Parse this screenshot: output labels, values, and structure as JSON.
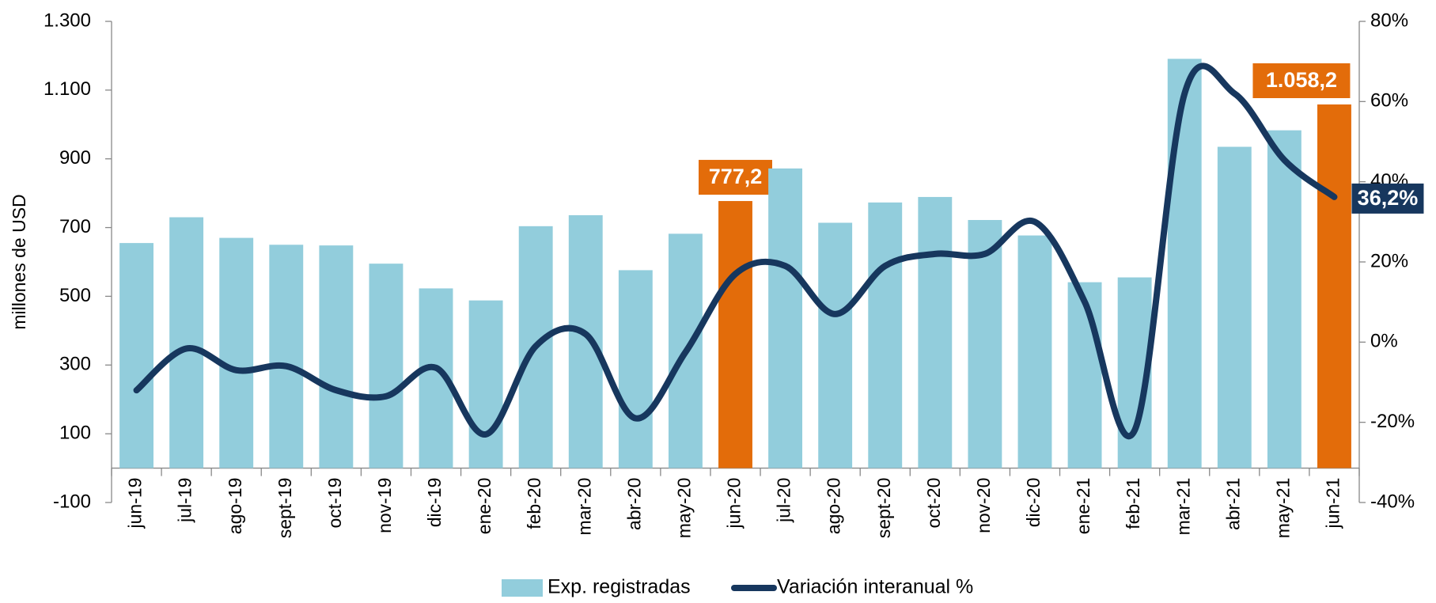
{
  "chart_data": {
    "type": "bar_line",
    "ylabel": "millones de USD",
    "categories": [
      "jun-19",
      "jul-19",
      "ago-19",
      "sept-19",
      "oct-19",
      "nov-19",
      "dic-19",
      "ene-20",
      "feb-20",
      "mar-20",
      "abr-20",
      "may-20",
      "jun-20",
      "jul-20",
      "ago-20",
      "sept-20",
      "oct-20",
      "nov-20",
      "dic-20",
      "ene-21",
      "feb-21",
      "mar-21",
      "abr-21",
      "may-21",
      "jun-21"
    ],
    "series": [
      {
        "name": "Exp. registradas",
        "type": "bar",
        "color": "#92cddc",
        "colors": [
          "#92cddc",
          "#92cddc",
          "#92cddc",
          "#92cddc",
          "#92cddc",
          "#92cddc",
          "#92cddc",
          "#92cddc",
          "#92cddc",
          "#92cddc",
          "#92cddc",
          "#92cddc",
          "#e36c0a",
          "#92cddc",
          "#92cddc",
          "#92cddc",
          "#92cddc",
          "#92cddc",
          "#92cddc",
          "#92cddc",
          "#92cddc",
          "#92cddc",
          "#92cddc",
          "#92cddc",
          "#e36c0a"
        ],
        "values": [
          655,
          730,
          670,
          650,
          648,
          595,
          523,
          488,
          704,
          736,
          576,
          682,
          777.2,
          872,
          714,
          773,
          789,
          722,
          677,
          541,
          555,
          1191,
          935,
          983,
          1058.2
        ],
        "value_labels": [
          null,
          null,
          null,
          null,
          null,
          null,
          null,
          null,
          null,
          null,
          null,
          null,
          "777,2",
          null,
          null,
          null,
          null,
          null,
          null,
          null,
          null,
          null,
          null,
          null,
          "1.058,2"
        ]
      },
      {
        "name": "Variación interanual %",
        "type": "line",
        "color": "#17375e",
        "axis": "y2",
        "values": [
          -12,
          -1.6,
          -7,
          -6,
          -12,
          -13.5,
          -6.4,
          -23,
          -1,
          2,
          -19,
          -2.5,
          17,
          19,
          7,
          19,
          22,
          22,
          30,
          10,
          -22,
          62,
          62,
          45.4,
          36.2
        ],
        "value_labels": [
          null,
          null,
          null,
          null,
          null,
          null,
          null,
          null,
          null,
          null,
          null,
          null,
          null,
          null,
          null,
          null,
          null,
          null,
          null,
          null,
          null,
          null,
          null,
          null,
          "36,2%"
        ]
      }
    ],
    "ylim": [
      -100,
      1300
    ],
    "yticks": [
      -100,
      100,
      300,
      500,
      700,
      900,
      {
        "value": 1100,
        "label": "1.100"
      },
      {
        "value": 1300,
        "label": "1.300"
      }
    ],
    "y2lim": [
      -40,
      80
    ],
    "y2ticks": [
      {
        "value": -40,
        "label": "-40%"
      },
      {
        "value": -20,
        "label": "-20%"
      },
      {
        "value": 0,
        "label": "0%"
      },
      {
        "value": 20,
        "label": "20%"
      },
      {
        "value": 40,
        "label": "40%"
      },
      {
        "value": 60,
        "label": "60%"
      },
      {
        "value": 80,
        "label": "80%"
      }
    ],
    "grid": false
  }
}
